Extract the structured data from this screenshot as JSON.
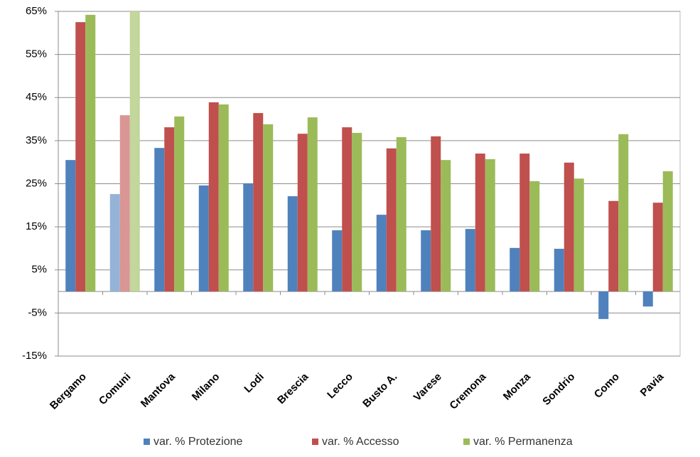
{
  "chart_data": {
    "type": "bar",
    "categories": [
      "Bergamo",
      "Comuni",
      "Mantova",
      "Milano",
      "Lodi",
      "Brescia",
      "Lecco",
      "Busto A.",
      "Varese",
      "Cremona",
      "Monza",
      "Sondrio",
      "Como",
      "Pavia"
    ],
    "highlight_index": 1,
    "series": [
      {
        "name": "var. % Protezione",
        "color": "#4f81bd",
        "highlight_color": "#95b3d7",
        "values": [
          30.5,
          22.6,
          33.3,
          24.6,
          25.1,
          22.1,
          14.2,
          17.8,
          14.2,
          14.5,
          10.1,
          9.9,
          -6.4,
          -3.5
        ]
      },
      {
        "name": "var. % Accesso",
        "color": "#c0504d",
        "highlight_color": "#d99694",
        "values": [
          62.5,
          40.9,
          38.1,
          43.9,
          41.4,
          36.6,
          38.1,
          33.2,
          36.0,
          32.0,
          32.0,
          29.9,
          21.0,
          20.6
        ]
      },
      {
        "name": "var. % Permanenza",
        "color": "#9bbb59",
        "highlight_color": "#c3d69b",
        "values": [
          64.2,
          65,
          40.6,
          43.4,
          38.8,
          40.4,
          36.8,
          35.8,
          30.5,
          30.7,
          25.6,
          26.2,
          36.5,
          27.9
        ]
      }
    ],
    "ylim": [
      -15,
      65
    ],
    "yticks": [
      {
        "value": -15,
        "label": "-15%"
      },
      {
        "value": -5,
        "label": "-5%"
      },
      {
        "value": 5,
        "label": "5%"
      },
      {
        "value": 15,
        "label": "15%"
      },
      {
        "value": 25,
        "label": "25%"
      },
      {
        "value": 35,
        "label": "35%"
      },
      {
        "value": 45,
        "label": "45%"
      },
      {
        "value": 55,
        "label": "55%"
      },
      {
        "value": 65,
        "label": "65%"
      }
    ],
    "grid": true,
    "legend": "bottom"
  }
}
